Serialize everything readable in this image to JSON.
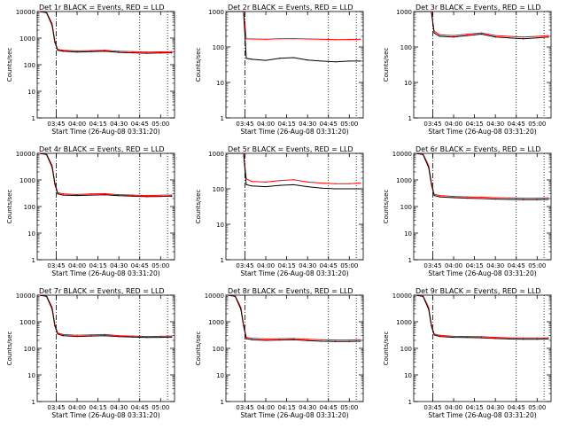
{
  "figure": {
    "xlabel": "Start Time (26-Aug-08 03:31:20)",
    "ylabel": "Counts/sec",
    "colors": {
      "events": "#000000",
      "lld": "#ff0000",
      "axes": "#000000"
    }
  },
  "chart_data": [
    {
      "type": "line",
      "title": "Det 1r BLACK = Events, RED = LLD",
      "xlabel": "Start Time (26-Aug-08 03:31:20)",
      "ylabel": "Counts/sec",
      "yscale": "log",
      "ylim": [
        1,
        10000
      ],
      "xlim": [
        "03:31:20",
        "05:10:00"
      ],
      "x_ticks": [
        "03:45",
        "04:00",
        "04:15",
        "04:30",
        "04:45",
        "05:00"
      ],
      "y_ticks": [
        "1",
        "10",
        "100",
        "1000",
        "10000"
      ],
      "vlines": [
        {
          "x": "03:45",
          "style": "dash-dot"
        },
        {
          "x": "04:45",
          "style": "dotted"
        },
        {
          "x": "05:05",
          "style": "dotted"
        }
      ],
      "x": [
        "03:33",
        "03:38",
        "03:42",
        "03:44",
        "03:46",
        "03:50",
        "04:00",
        "04:10",
        "04:20",
        "04:30",
        "04:40",
        "04:50",
        "05:00",
        "05:08"
      ],
      "series": [
        {
          "name": "Events",
          "color": "#000000",
          "values": [
            10000,
            9000,
            3000,
            700,
            350,
            320,
            300,
            310,
            320,
            290,
            280,
            270,
            275,
            280
          ]
        },
        {
          "name": "LLD",
          "color": "#ff0000",
          "values": [
            10000,
            9500,
            3500,
            800,
            380,
            350,
            330,
            340,
            350,
            320,
            310,
            300,
            305,
            310
          ]
        }
      ]
    },
    {
      "type": "line",
      "title": "Det 2r BLACK = Events, RED = LLD",
      "xlabel": "Start Time (26-Aug-08 03:31:20)",
      "ylabel": "Counts/sec",
      "yscale": "log",
      "ylim": [
        1,
        1000
      ],
      "xlim": [
        "03:31:20",
        "05:10:00"
      ],
      "x_ticks": [
        "03:45",
        "04:00",
        "04:15",
        "04:30",
        "04:45",
        "05:00"
      ],
      "y_ticks": [
        "1",
        "10",
        "100",
        "1000"
      ],
      "vlines": [
        {
          "x": "03:45",
          "style": "dash-dot"
        },
        {
          "x": "04:45",
          "style": "dotted"
        },
        {
          "x": "05:05",
          "style": "dotted"
        }
      ],
      "x": [
        "03:33",
        "03:38",
        "03:42",
        "03:44",
        "03:46",
        "03:50",
        "04:00",
        "04:10",
        "04:20",
        "04:30",
        "04:40",
        "04:50",
        "05:00",
        "05:08"
      ],
      "series": [
        {
          "name": "Events",
          "color": "#000000",
          "values": [
            1000,
            1000,
            1000,
            1000,
            48,
            45,
            42,
            48,
            50,
            43,
            40,
            38,
            40,
            40
          ]
        },
        {
          "name": "LLD",
          "color": "#ff0000",
          "values": [
            1000,
            1000,
            1000,
            1000,
            170,
            168,
            165,
            170,
            172,
            168,
            165,
            160,
            162,
            165
          ]
        }
      ]
    },
    {
      "type": "line",
      "title": "Det 3r BLACK = Events, RED = LLD",
      "xlabel": "Start Time (26-Aug-08 03:31:20)",
      "ylabel": "Counts/sec",
      "yscale": "log",
      "ylim": [
        1,
        1000
      ],
      "xlim": [
        "03:31:20",
        "05:10:00"
      ],
      "x_ticks": [
        "03:45",
        "04:00",
        "04:15",
        "04:30",
        "04:45",
        "05:00"
      ],
      "y_ticks": [
        "1",
        "10",
        "100",
        "1000"
      ],
      "vlines": [
        {
          "x": "03:45",
          "style": "dash-dot"
        },
        {
          "x": "04:45",
          "style": "dotted"
        },
        {
          "x": "05:05",
          "style": "dotted"
        }
      ],
      "x": [
        "03:33",
        "03:38",
        "03:42",
        "03:44",
        "03:46",
        "03:50",
        "04:00",
        "04:10",
        "04:20",
        "04:30",
        "04:40",
        "04:50",
        "05:00",
        "05:08"
      ],
      "series": [
        {
          "name": "Events",
          "color": "#000000",
          "values": [
            1000,
            1000,
            1000,
            1000,
            250,
            200,
            190,
            210,
            230,
            190,
            180,
            170,
            180,
            190
          ]
        },
        {
          "name": "LLD",
          "color": "#ff0000",
          "values": [
            1000,
            1000,
            1000,
            1000,
            280,
            220,
            210,
            230,
            250,
            210,
            200,
            190,
            200,
            210
          ]
        }
      ]
    },
    {
      "type": "line",
      "title": "Det 4r BLACK = Events, RED = LLD",
      "xlabel": "Start Time (26-Aug-08 03:31:20)",
      "ylabel": "Counts/sec",
      "yscale": "log",
      "ylim": [
        1,
        10000
      ],
      "xlim": [
        "03:31:20",
        "05:10:00"
      ],
      "x_ticks": [
        "03:45",
        "04:00",
        "04:15",
        "04:30",
        "04:45",
        "05:00"
      ],
      "y_ticks": [
        "1",
        "10",
        "100",
        "1000",
        "10000"
      ],
      "vlines": [
        {
          "x": "03:45",
          "style": "dash-dot"
        },
        {
          "x": "04:45",
          "style": "dotted"
        },
        {
          "x": "05:05",
          "style": "dotted"
        }
      ],
      "x": [
        "03:33",
        "03:38",
        "03:42",
        "03:44",
        "03:46",
        "03:50",
        "04:00",
        "04:10",
        "04:20",
        "04:30",
        "04:40",
        "04:50",
        "05:00",
        "05:08"
      ],
      "series": [
        {
          "name": "Events",
          "color": "#000000",
          "values": [
            10000,
            9000,
            3000,
            700,
            300,
            270,
            260,
            270,
            275,
            255,
            245,
            235,
            240,
            245
          ]
        },
        {
          "name": "LLD",
          "color": "#ff0000",
          "values": [
            10000,
            9500,
            3500,
            800,
            330,
            300,
            285,
            300,
            305,
            280,
            270,
            260,
            265,
            270
          ]
        }
      ]
    },
    {
      "type": "line",
      "title": "Det 5r BLACK = Events, RED = LLD",
      "xlabel": "Start Time (26-Aug-08 03:31:20)",
      "ylabel": "Counts/sec",
      "yscale": "log",
      "ylim": [
        1,
        1000
      ],
      "xlim": [
        "03:31:20",
        "05:10:00"
      ],
      "x_ticks": [
        "03:45",
        "04:00",
        "04:15",
        "04:30",
        "04:45",
        "05:00"
      ],
      "y_ticks": [
        "1",
        "10",
        "100",
        "1000"
      ],
      "vlines": [
        {
          "x": "03:45",
          "style": "dash-dot"
        },
        {
          "x": "04:45",
          "style": "dotted"
        },
        {
          "x": "05:05",
          "style": "dotted"
        }
      ],
      "x": [
        "03:33",
        "03:38",
        "03:42",
        "03:44",
        "03:46",
        "03:50",
        "04:00",
        "04:10",
        "04:20",
        "04:30",
        "04:40",
        "04:50",
        "05:00",
        "05:08"
      ],
      "series": [
        {
          "name": "Events",
          "color": "#000000",
          "values": [
            1000,
            1000,
            1000,
            1000,
            130,
            120,
            115,
            125,
            130,
            115,
            105,
            100,
            100,
            100
          ]
        },
        {
          "name": "LLD",
          "color": "#ff0000",
          "values": [
            1000,
            1000,
            1000,
            1000,
            190,
            160,
            155,
            170,
            180,
            155,
            145,
            140,
            140,
            145
          ]
        }
      ]
    },
    {
      "type": "line",
      "title": "Det 6r BLACK = Events, RED = LLD",
      "xlabel": "Start Time (26-Aug-08 03:31:20)",
      "ylabel": "Counts/sec",
      "yscale": "log",
      "ylim": [
        1,
        10000
      ],
      "xlim": [
        "03:31:20",
        "05:10:00"
      ],
      "x_ticks": [
        "03:45",
        "04:00",
        "04:15",
        "04:30",
        "04:45",
        "05:00"
      ],
      "y_ticks": [
        "1",
        "10",
        "100",
        "1000",
        "10000"
      ],
      "vlines": [
        {
          "x": "03:45",
          "style": "dash-dot"
        },
        {
          "x": "04:45",
          "style": "dotted"
        },
        {
          "x": "05:05",
          "style": "dotted"
        }
      ],
      "x": [
        "03:33",
        "03:38",
        "03:42",
        "03:44",
        "03:46",
        "03:50",
        "04:00",
        "04:10",
        "04:20",
        "04:30",
        "04:40",
        "04:50",
        "05:00",
        "05:08"
      ],
      "series": [
        {
          "name": "Events",
          "color": "#000000",
          "values": [
            10000,
            9000,
            3000,
            700,
            260,
            230,
            215,
            205,
            200,
            190,
            185,
            180,
            180,
            185
          ]
        },
        {
          "name": "LLD",
          "color": "#ff0000",
          "values": [
            10000,
            9500,
            3500,
            800,
            290,
            260,
            240,
            230,
            225,
            215,
            210,
            205,
            205,
            210
          ]
        }
      ]
    },
    {
      "type": "line",
      "title": "Det 7r BLACK = Events, RED = LLD",
      "xlabel": "Start Time (26-Aug-08 03:31:20)",
      "ylabel": "Counts/sec",
      "yscale": "log",
      "ylim": [
        1,
        10000
      ],
      "xlim": [
        "03:31:20",
        "05:10:00"
      ],
      "x_ticks": [
        "03:45",
        "04:00",
        "04:15",
        "04:30",
        "04:45",
        "05:00"
      ],
      "y_ticks": [
        "1",
        "10",
        "100",
        "1000",
        "10000"
      ],
      "vlines": [
        {
          "x": "03:45",
          "style": "dash-dot"
        },
        {
          "x": "04:45",
          "style": "dotted"
        },
        {
          "x": "05:05",
          "style": "dotted"
        }
      ],
      "x": [
        "03:33",
        "03:38",
        "03:42",
        "03:44",
        "03:46",
        "03:50",
        "04:00",
        "04:10",
        "04:20",
        "04:30",
        "04:40",
        "04:50",
        "05:00",
        "05:08"
      ],
      "series": [
        {
          "name": "Events",
          "color": "#000000",
          "values": [
            10000,
            9000,
            3000,
            700,
            350,
            300,
            280,
            290,
            300,
            275,
            265,
            255,
            260,
            265
          ]
        },
        {
          "name": "LLD",
          "color": "#ff0000",
          "values": [
            10000,
            9500,
            3500,
            800,
            380,
            330,
            310,
            320,
            330,
            300,
            290,
            280,
            285,
            290
          ]
        }
      ]
    },
    {
      "type": "line",
      "title": "Det 8r BLACK = Events, RED = LLD",
      "xlabel": "Start Time (26-Aug-08 03:31:20)",
      "ylabel": "Counts/sec",
      "yscale": "log",
      "ylim": [
        1,
        10000
      ],
      "xlim": [
        "03:31:20",
        "05:10:00"
      ],
      "x_ticks": [
        "03:45",
        "04:00",
        "04:15",
        "04:30",
        "04:45",
        "05:00"
      ],
      "y_ticks": [
        "1",
        "10",
        "100",
        "1000",
        "10000"
      ],
      "vlines": [
        {
          "x": "03:45",
          "style": "dash-dot"
        },
        {
          "x": "04:45",
          "style": "dotted"
        },
        {
          "x": "05:05",
          "style": "dotted"
        }
      ],
      "x": [
        "03:33",
        "03:38",
        "03:42",
        "03:44",
        "03:46",
        "03:50",
        "04:00",
        "04:10",
        "04:20",
        "04:30",
        "04:40",
        "04:50",
        "05:00",
        "05:08"
      ],
      "series": [
        {
          "name": "Events",
          "color": "#000000",
          "values": [
            10000,
            9000,
            3000,
            700,
            230,
            210,
            200,
            205,
            210,
            195,
            185,
            180,
            180,
            185
          ]
        },
        {
          "name": "LLD",
          "color": "#ff0000",
          "values": [
            10000,
            9500,
            3500,
            800,
            260,
            240,
            225,
            230,
            235,
            220,
            210,
            205,
            205,
            210
          ]
        }
      ]
    },
    {
      "type": "line",
      "title": "Det 9r BLACK = Events, RED = LLD",
      "xlabel": "Start Time (26-Aug-08 03:31:20)",
      "ylabel": "Counts/sec",
      "yscale": "log",
      "ylim": [
        1,
        10000
      ],
      "xlim": [
        "03:31:20",
        "05:10:00"
      ],
      "x_ticks": [
        "03:45",
        "04:00",
        "04:15",
        "04:30",
        "04:45",
        "05:00"
      ],
      "y_ticks": [
        "1",
        "10",
        "100",
        "1000",
        "10000"
      ],
      "vlines": [
        {
          "x": "03:45",
          "style": "dash-dot"
        },
        {
          "x": "04:45",
          "style": "dotted"
        },
        {
          "x": "05:05",
          "style": "dotted"
        }
      ],
      "x": [
        "03:33",
        "03:38",
        "03:42",
        "03:44",
        "03:46",
        "03:50",
        "04:00",
        "04:10",
        "04:20",
        "04:30",
        "04:40",
        "04:50",
        "05:00",
        "05:08"
      ],
      "series": [
        {
          "name": "Events",
          "color": "#000000",
          "values": [
            10000,
            9000,
            3000,
            700,
            320,
            280,
            260,
            255,
            250,
            235,
            225,
            220,
            220,
            225
          ]
        },
        {
          "name": "LLD",
          "color": "#ff0000",
          "values": [
            10000,
            9500,
            3500,
            800,
            350,
            310,
            285,
            280,
            275,
            260,
            250,
            245,
            245,
            250
          ]
        }
      ]
    }
  ]
}
